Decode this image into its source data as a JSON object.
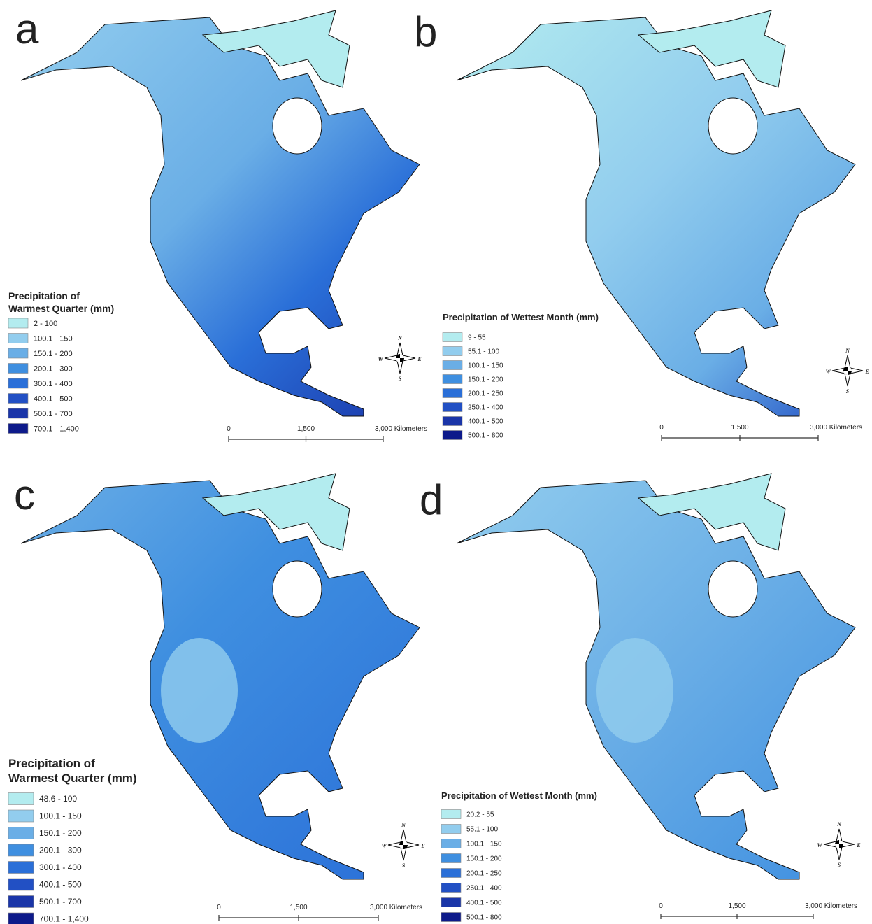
{
  "compass": [
    "N",
    "E",
    "S",
    "W"
  ],
  "panels": [
    {
      "label": "a",
      "legend": {
        "title": [
          "Precipitation of",
          "Warmest Quarter (mm)"
        ],
        "items": [
          {
            "label": "2 - 100",
            "color": "#b3ecef"
          },
          {
            "label": "100.1 - 150",
            "color": "#92cdee"
          },
          {
            "label": "150.1 - 200",
            "color": "#6aaee6"
          },
          {
            "label": "200.1 - 300",
            "color": "#3f8fe0"
          },
          {
            "label": "300.1 - 400",
            "color": "#2a6fd8"
          },
          {
            "label": "400.1 - 500",
            "color": "#2250c4"
          },
          {
            "label": "500.1 - 700",
            "color": "#1a35a8"
          },
          {
            "label": "700.1 - 1,400",
            "color": "#0d1a8a"
          }
        ]
      },
      "scale": [
        "0",
        "1,500",
        "3,000 Kilometers"
      ]
    },
    {
      "label": "b",
      "legend": {
        "title": [
          "Precipitation of Wettest Month (mm)"
        ],
        "items": [
          {
            "label": "9 - 55",
            "color": "#b3ecef"
          },
          {
            "label": "55.1 - 100",
            "color": "#92cdee"
          },
          {
            "label": "100.1 - 150",
            "color": "#6aaee6"
          },
          {
            "label": "150.1 - 200",
            "color": "#3f8fe0"
          },
          {
            "label": "200.1 - 250",
            "color": "#2a6fd8"
          },
          {
            "label": "250.1 - 400",
            "color": "#2250c4"
          },
          {
            "label": "400.1 - 500",
            "color": "#1a35a8"
          },
          {
            "label": "500.1 - 800",
            "color": "#0d1a8a"
          }
        ]
      },
      "scale": [
        "0",
        "1,500",
        "3,000 Kilometers"
      ]
    },
    {
      "label": "c",
      "legend": {
        "title": [
          "Precipitation of",
          "Warmest Quarter (mm)"
        ],
        "items": [
          {
            "label": "48.6 - 100",
            "color": "#b3ecef"
          },
          {
            "label": "100.1 - 150",
            "color": "#92cdee"
          },
          {
            "label": "150.1 - 200",
            "color": "#6aaee6"
          },
          {
            "label": "200.1 - 300",
            "color": "#3f8fe0"
          },
          {
            "label": "300.1 - 400",
            "color": "#2a6fd8"
          },
          {
            "label": "400.1 - 500",
            "color": "#2250c4"
          },
          {
            "label": "500.1 - 700",
            "color": "#1a35a8"
          },
          {
            "label": "700.1 - 1,400",
            "color": "#0d1a8a"
          }
        ]
      },
      "scale": [
        "0",
        "1,500",
        "3,000 Kilometers"
      ]
    },
    {
      "label": "d",
      "legend": {
        "title": [
          "Precipitation of Wettest Month (mm)"
        ],
        "items": [
          {
            "label": "20.2 - 55",
            "color": "#b3ecef"
          },
          {
            "label": "55.1 - 100",
            "color": "#92cdee"
          },
          {
            "label": "100.1 - 150",
            "color": "#6aaee6"
          },
          {
            "label": "150.1 - 200",
            "color": "#3f8fe0"
          },
          {
            "label": "200.1 - 250",
            "color": "#2a6fd8"
          },
          {
            "label": "250.1 - 400",
            "color": "#2250c4"
          },
          {
            "label": "400.1 - 500",
            "color": "#1a35a8"
          },
          {
            "label": "500.1 - 800",
            "color": "#0d1a8a"
          }
        ]
      },
      "scale": [
        "0",
        "1,500",
        "3,000 Kilometers"
      ]
    }
  ]
}
